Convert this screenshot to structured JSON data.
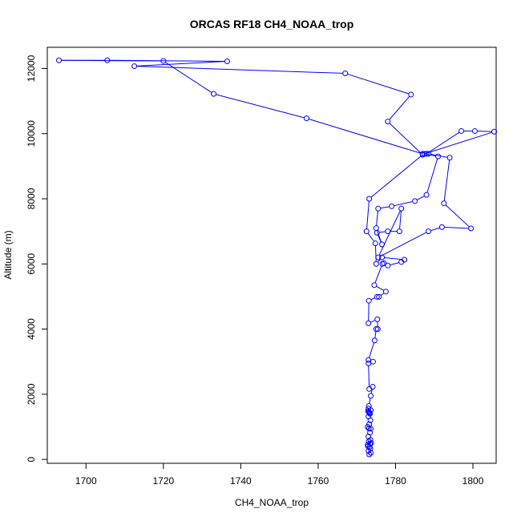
{
  "chart_data": {
    "type": "line",
    "title": "ORCAS RF18 CH4_NOAA_trop",
    "xlabel": "CH4_NOAA_trop",
    "ylabel": "Altitude (m)",
    "xlim": [
      1690,
      1806
    ],
    "ylim": [
      -120,
      12650
    ],
    "xticks": [
      1700,
      1720,
      1740,
      1760,
      1780,
      1800
    ],
    "yticks": [
      0,
      2000,
      4000,
      6000,
      8000,
      10000,
      12000
    ],
    "series_color": "#0000ff",
    "marker": "open-circle",
    "series": [
      {
        "points": [
          [
            1773.2,
            150
          ],
          [
            1773.6,
            200
          ],
          [
            1773.0,
            260
          ],
          [
            1773.5,
            330
          ],
          [
            1772.9,
            400
          ],
          [
            1773.4,
            480
          ],
          [
            1773.1,
            550
          ],
          [
            1773.7,
            500
          ],
          [
            1772.8,
            450
          ],
          [
            1773.3,
            380
          ],
          [
            1773.5,
            600
          ],
          [
            1773.0,
            700
          ],
          [
            1773.4,
            820
          ],
          [
            1773.1,
            950
          ],
          [
            1772.8,
            1000
          ],
          [
            1773.6,
            940
          ],
          [
            1773.2,
            1080
          ],
          [
            1773.5,
            1200
          ],
          [
            1773.0,
            1320
          ],
          [
            1773.3,
            1430
          ],
          [
            1772.9,
            1480
          ],
          [
            1773.6,
            1510
          ],
          [
            1773.1,
            1450
          ],
          [
            1773.4,
            1400
          ],
          [
            1773.0,
            1560
          ],
          [
            1773.1,
            1640
          ],
          [
            1773.6,
            1950
          ],
          [
            1774.1,
            2230
          ],
          [
            1773.2,
            2160
          ],
          [
            1773.0,
            2950
          ],
          [
            1774.2,
            3000
          ],
          [
            1773.0,
            3050
          ],
          [
            1774.6,
            3650
          ],
          [
            1775.0,
            4000
          ],
          [
            1775.4,
            4000
          ],
          [
            1775.3,
            4300
          ],
          [
            1773.0,
            4180
          ],
          [
            1773.1,
            4870
          ],
          [
            1775.2,
            4990
          ],
          [
            1775.7,
            4990
          ],
          [
            1777.5,
            5150
          ],
          [
            1774.5,
            5350
          ],
          [
            1776.6,
            6000
          ],
          [
            1777.0,
            6020
          ],
          [
            1778.0,
            5950
          ],
          [
            1781.5,
            6060
          ],
          [
            1782.3,
            6130
          ],
          [
            1776.5,
            6200
          ],
          [
            1775.0,
            6000
          ],
          [
            1774.8,
            6630
          ],
          [
            1772.5,
            7000
          ],
          [
            1773.2,
            8000
          ],
          [
            1787.0,
            9350
          ],
          [
            1778.0,
            10370
          ],
          [
            1784.0,
            11200
          ],
          [
            1767.0,
            11850
          ],
          [
            1712.5,
            12070
          ],
          [
            1736.5,
            12220
          ],
          [
            1705.5,
            12250
          ],
          [
            1693.0,
            12250
          ],
          [
            1720.0,
            12230
          ],
          [
            1733.0,
            11220
          ],
          [
            1757.0,
            10470
          ],
          [
            1787.0,
            9380
          ],
          [
            1788.0,
            9380
          ],
          [
            1797.0,
            10080
          ],
          [
            1800.5,
            10080
          ],
          [
            1805.5,
            10060
          ],
          [
            1787.5,
            9380
          ],
          [
            1791.0,
            9300
          ],
          [
            1788.0,
            8120
          ],
          [
            1785.0,
            7930
          ],
          [
            1779.0,
            7770
          ],
          [
            1775.5,
            7700
          ],
          [
            1775.0,
            7100
          ],
          [
            1776.5,
            6600
          ],
          [
            1775.2,
            6960
          ],
          [
            1778.0,
            7000
          ],
          [
            1781.0,
            7000
          ],
          [
            1781.5,
            7700
          ],
          [
            1775.5,
            6200
          ],
          [
            1788.5,
            7000
          ],
          [
            1792.0,
            7130
          ],
          [
            1799.5,
            7090
          ],
          [
            1792.5,
            7860
          ],
          [
            1794.0,
            9260
          ],
          [
            1788.5,
            9380
          ]
        ]
      }
    ]
  }
}
